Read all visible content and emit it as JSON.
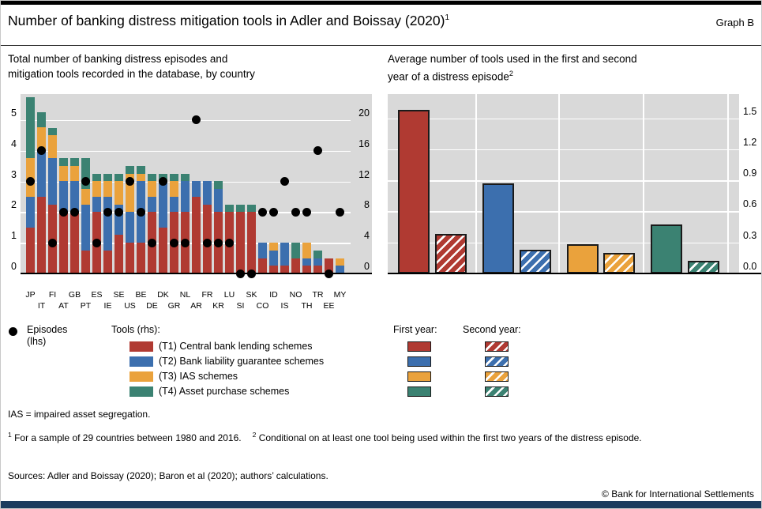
{
  "header": {
    "title": "Number of banking distress mitigation tools in Adler and Boissay (2020)",
    "title_sup": "1",
    "graph_label": "Graph B"
  },
  "left_panel": {
    "subtitle_line1": "Total number of banking distress episodes and",
    "subtitle_line2": "mitigation tools recorded in the database, by country"
  },
  "right_panel": {
    "subtitle_line1": "Average number of tools used in the first and second",
    "subtitle_line2": "year of a distress episode",
    "subtitle_sup": "2"
  },
  "legend": {
    "episodes_label": "Episodes",
    "episodes_sub": "(lhs)",
    "tools_header": "Tools (rhs):",
    "tools": [
      {
        "key": "t1",
        "label": "(T1) Central bank lending schemes"
      },
      {
        "key": "t2",
        "label": "(T2) Bank liability guarantee schemes"
      },
      {
        "key": "t3",
        "label": "(T3) IAS schemes"
      },
      {
        "key": "t4",
        "label": "(T4) Asset purchase schemes"
      }
    ],
    "first_year_label": "First year:",
    "second_year_label": "Second year:"
  },
  "footnotes": {
    "ias": "IAS = impaired asset segregation.",
    "fn1_sup": "1",
    "fn1": "For a sample of 29 countries between 1980 and 2016.",
    "fn2_sup": "2",
    "fn2": "Conditional on at least one tool being used within the first two years of the distress episode.",
    "sources": "Sources: Adler and Boissay (2020); Baron et al (2020); authors’ calculations.",
    "copyright": "© Bank for International Settlements"
  },
  "colors": {
    "t1": "#b03a32",
    "t2": "#3c6fae",
    "t3": "#eaa23c",
    "t4": "#3b8272",
    "episode_dot": "#000000",
    "plot_bg": "#d9d9d9",
    "gridline": "#ffffff",
    "bottom_bar": "#1c3c5e"
  },
  "chart_data": [
    {
      "type": "bar",
      "subtype": "stacked-bar-with-scatter-overlay",
      "title": "Total number of banking distress episodes and mitigation tools recorded in the database, by country",
      "categories": [
        "JP",
        "IT",
        "FI",
        "AT",
        "GB",
        "PT",
        "ES",
        "IE",
        "SE",
        "US",
        "BE",
        "DE",
        "DK",
        "GR",
        "NL",
        "AR",
        "FR",
        "KR",
        "LU",
        "SI",
        "SK",
        "CO",
        "ID",
        "IS",
        "NO",
        "TH",
        "TR",
        "EE",
        "MY"
      ],
      "scatter": {
        "name": "Episodes (lhs)",
        "values": [
          3,
          4,
          1,
          2,
          2,
          3,
          1,
          2,
          2,
          3,
          2,
          1,
          3,
          1,
          1,
          5,
          1,
          1,
          1,
          0,
          0,
          2,
          2,
          3,
          2,
          2,
          4,
          0,
          2
        ]
      },
      "series": [
        {
          "key": "t1",
          "name": "(T1) Central bank lending schemes",
          "values": [
            6,
            10,
            9,
            8,
            8,
            3,
            8,
            3,
            5,
            4,
            4,
            8,
            6,
            8,
            8,
            10,
            9,
            8,
            8,
            8,
            8,
            2,
            1,
            1,
            2,
            1,
            1,
            2,
            0
          ]
        },
        {
          "key": "t2",
          "name": "(T2) Bank liability guarantee schemes",
          "values": [
            4,
            6,
            6,
            4,
            4,
            6,
            2,
            7,
            4,
            4,
            8,
            2,
            6,
            2,
            4,
            2,
            3,
            3,
            0,
            0,
            0,
            2,
            2,
            3,
            0,
            1,
            1,
            0,
            1
          ]
        },
        {
          "key": "t3",
          "name": "(T3) IAS schemes",
          "values": [
            5,
            3,
            3,
            2,
            2,
            2,
            2,
            2,
            3,
            5,
            1,
            2,
            0,
            2,
            0,
            0,
            0,
            0,
            0,
            0,
            0,
            0,
            1,
            0,
            0,
            2,
            0,
            0,
            1
          ]
        },
        {
          "key": "t4",
          "name": "(T4) Asset purchase schemes",
          "values": [
            8,
            2,
            1,
            1,
            1,
            4,
            1,
            1,
            1,
            1,
            1,
            1,
            1,
            1,
            1,
            0,
            0,
            1,
            1,
            1,
            1,
            0,
            0,
            0,
            2,
            0,
            1,
            0,
            0
          ]
        }
      ],
      "lhs_axis": {
        "label": "Episodes (lhs)",
        "ticks": [
          0,
          1,
          2,
          3,
          4,
          5
        ],
        "tick_labels": [
          "0",
          "1",
          "2",
          "3",
          "4",
          "5"
        ],
        "max": 5.85
      },
      "rhs_axis": {
        "label": "Tools (rhs)",
        "ticks": [
          0,
          4,
          8,
          12,
          16,
          20
        ],
        "tick_labels": [
          "0",
          "4",
          "8",
          "12",
          "16",
          "20"
        ],
        "max": 23.4
      },
      "grid": true
    },
    {
      "type": "bar",
      "subtype": "grouped-pairs",
      "title": "Average number of tools used in the first and second year of a distress episode",
      "groups": [
        "T1",
        "T2",
        "T3",
        "T4"
      ],
      "group_keys": [
        "t1",
        "t2",
        "t3",
        "t4"
      ],
      "series": [
        {
          "name": "First year",
          "style": "solid",
          "values": [
            1.58,
            0.87,
            0.28,
            0.47
          ]
        },
        {
          "name": "Second year",
          "style": "hatched",
          "values": [
            0.38,
            0.23,
            0.2,
            0.12
          ]
        }
      ],
      "yticks": [
        0.0,
        0.3,
        0.6,
        0.9,
        1.2,
        1.5
      ],
      "ytick_labels": [
        "0.0",
        "0.3",
        "0.6",
        "0.9",
        "1.2",
        "1.5"
      ],
      "ylim": [
        0,
        1.73
      ],
      "grid": true,
      "legend_position": "below"
    }
  ]
}
